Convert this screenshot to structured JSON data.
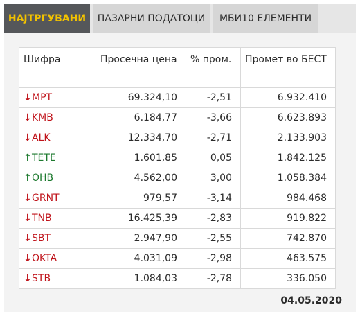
{
  "tabs": [
    {
      "label": "НАЈТРГУВАНИ",
      "active": true
    },
    {
      "label": "ПАЗАРНИ ПОДАТОЦИ",
      "active": false
    },
    {
      "label": "МБИ10 ЕЛЕМЕНТИ",
      "active": false
    }
  ],
  "table": {
    "headers": [
      "Шифра",
      "Просечна цена",
      "% пром.",
      "Промет во БЕСТ"
    ],
    "rows": [
      {
        "symbol": "MPT",
        "direction": "down",
        "price": "69.324,10",
        "change": "-2,51",
        "turnover": "6.932.410"
      },
      {
        "symbol": "KMB",
        "direction": "down",
        "price": "6.184,77",
        "change": "-3,66",
        "turnover": "6.623.893"
      },
      {
        "symbol": "ALK",
        "direction": "down",
        "price": "12.334,70",
        "change": "-2,71",
        "turnover": "2.133.903"
      },
      {
        "symbol": "TETE",
        "direction": "up",
        "price": "1.601,85",
        "change": "0,05",
        "turnover": "1.842.125"
      },
      {
        "symbol": "OHB",
        "direction": "up",
        "price": "4.562,00",
        "change": "3,00",
        "turnover": "1.058.384"
      },
      {
        "symbol": "GRNT",
        "direction": "down",
        "price": "979,57",
        "change": "-3,14",
        "turnover": "984.468"
      },
      {
        "symbol": "TNB",
        "direction": "down",
        "price": "16.425,39",
        "change": "-2,83",
        "turnover": "919.822"
      },
      {
        "symbol": "SBT",
        "direction": "down",
        "price": "2.947,90",
        "change": "-2,55",
        "turnover": "742.870"
      },
      {
        "symbol": "OKTA",
        "direction": "down",
        "price": "4.031,09",
        "change": "-2,98",
        "turnover": "463.575"
      },
      {
        "symbol": "STB",
        "direction": "down",
        "price": "1.084,03",
        "change": "-2,78",
        "turnover": "336.050"
      }
    ]
  },
  "date": "04.05.2020",
  "colors": {
    "up": "#1e7a2f",
    "down": "#c0141b",
    "active_tab_text": "#f2c200",
    "active_tab_bg": "#55575a"
  },
  "icons": {
    "up": "arrow-up-icon",
    "down": "arrow-down-icon"
  }
}
